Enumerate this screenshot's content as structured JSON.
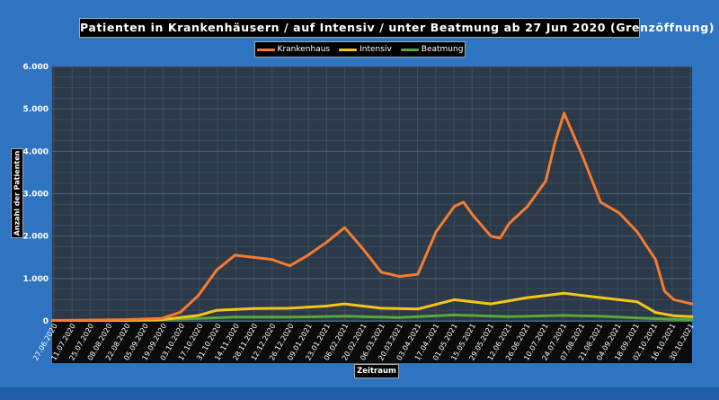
{
  "chart_data": {
    "type": "line",
    "title": "Patienten in Krankenhäusern / auf Intensiv / unter Beatmung ab 27 Jun 2020 (Grenzöffnung)",
    "xlabel": "Zeitraum",
    "ylabel": "Anzahl der Patienten",
    "ylim": [
      0,
      6000
    ],
    "yticks": [
      0,
      1000,
      2000,
      3000,
      4000,
      5000,
      6000
    ],
    "ytick_labels": [
      "0",
      "1.000",
      "2.000",
      "3.000",
      "4.000",
      "5.000",
      "6.000"
    ],
    "xlim": [
      "2020-06-27",
      "2021-10-30"
    ],
    "xtick_labels": [
      "27.06.2020",
      "11.07.2020",
      "25.07.2020",
      "08.08.2020",
      "22.08.2020",
      "05.09.2020",
      "19.09.2020",
      "03.10.2020",
      "17.10.2020",
      "31.10.2020",
      "14.11.2020",
      "28.11.2020",
      "12.12.2020",
      "26.12.2020",
      "09.01.2021",
      "23.01.2021",
      "06.02.2021",
      "20.02.2021",
      "06.03.2021",
      "20.03.2021",
      "03.04.2021",
      "17.04.2021",
      "01.05.2021",
      "15.05.2021",
      "29.05.2021",
      "12.06.2021",
      "26.06.2021",
      "10.07.2021",
      "24.07.2021",
      "07.08.2021",
      "21.08.2021",
      "04.09.2021",
      "18.09.2021",
      "02.10.2021",
      "16.10.2021",
      "30.10.2021"
    ],
    "grid": true,
    "legend_position": "top",
    "series": [
      {
        "name": "Krankenhaus",
        "color": "#f47c30",
        "x": [
          "2020-06-27",
          "2020-07-25",
          "2020-08-22",
          "2020-09-19",
          "2020-10-03",
          "2020-10-17",
          "2020-10-31",
          "2020-11-14",
          "2020-11-28",
          "2020-12-12",
          "2020-12-26",
          "2021-01-09",
          "2021-01-23",
          "2021-02-06",
          "2021-02-20",
          "2021-03-06",
          "2021-03-20",
          "2021-04-03",
          "2021-04-17",
          "2021-05-01",
          "2021-05-08",
          "2021-05-15",
          "2021-05-29",
          "2021-06-05",
          "2021-06-12",
          "2021-06-26",
          "2021-07-03",
          "2021-07-10",
          "2021-07-17",
          "2021-07-24",
          "2021-08-07",
          "2021-08-21",
          "2021-09-04",
          "2021-09-18",
          "2021-10-02",
          "2021-10-09",
          "2021-10-16",
          "2021-10-30"
        ],
        "values": [
          10,
          20,
          30,
          60,
          200,
          600,
          1200,
          1550,
          1500,
          1450,
          1300,
          1550,
          1850,
          2200,
          1700,
          1150,
          1050,
          1100,
          2100,
          2700,
          2800,
          2500,
          2000,
          1950,
          2300,
          2700,
          3000,
          3300,
          4200,
          4900,
          3900,
          2800,
          2550,
          2100,
          1450,
          700,
          500,
          400
        ]
      },
      {
        "name": "Intensiv",
        "color": "#f5c518",
        "x": [
          "2020-06-27",
          "2020-08-22",
          "2020-09-19",
          "2020-10-17",
          "2020-10-31",
          "2020-11-28",
          "2020-12-26",
          "2021-01-23",
          "2021-02-06",
          "2021-03-06",
          "2021-04-03",
          "2021-05-01",
          "2021-05-29",
          "2021-06-26",
          "2021-07-24",
          "2021-08-21",
          "2021-09-18",
          "2021-10-02",
          "2021-10-16",
          "2021-10-30"
        ],
        "values": [
          5,
          10,
          30,
          130,
          250,
          290,
          300,
          350,
          400,
          300,
          280,
          500,
          400,
          550,
          650,
          550,
          450,
          200,
          120,
          100
        ]
      },
      {
        "name": "Beatmung",
        "color": "#5aa83a",
        "x": [
          "2020-06-27",
          "2020-08-22",
          "2020-10-17",
          "2020-11-14",
          "2020-12-26",
          "2021-02-06",
          "2021-03-20",
          "2021-05-01",
          "2021-06-12",
          "2021-07-24",
          "2021-08-21",
          "2021-09-18",
          "2021-10-16",
          "2021-10-30"
        ],
        "values": [
          3,
          5,
          60,
          90,
          90,
          110,
          80,
          140,
          100,
          130,
          110,
          70,
          40,
          30
        ]
      }
    ]
  }
}
